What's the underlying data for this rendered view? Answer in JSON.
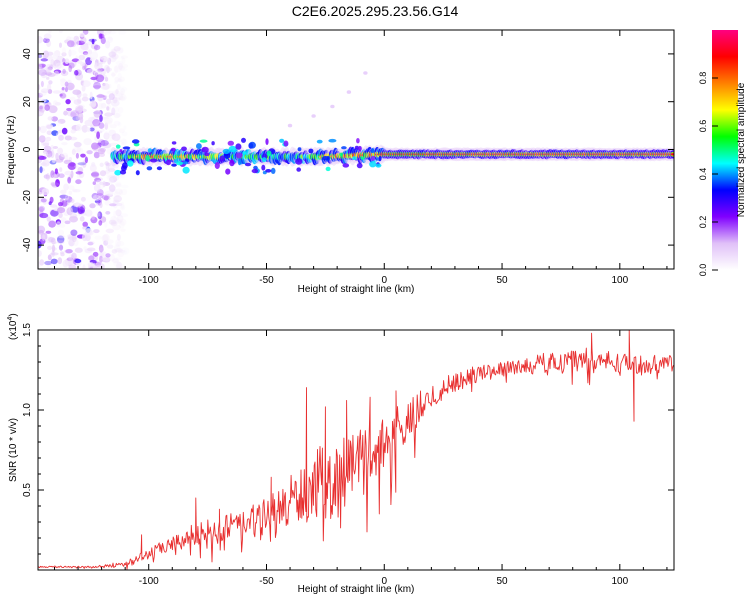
{
  "title": "C2E6.2025.295.23.56.G14",
  "chart_data": [
    {
      "type": "heatmap",
      "xlabel": "Height of straight line (km)",
      "ylabel": "Frequency (Hz)",
      "xlim": [
        -147,
        123
      ],
      "ylim": [
        -50,
        50
      ],
      "xticks": [
        -100,
        -50,
        0,
        50,
        100
      ],
      "yticks": [
        -40,
        -20,
        0,
        20,
        40
      ],
      "colorbar": {
        "label": "Normalized spectral amplitude",
        "range": [
          0,
          1
        ],
        "ticks": [
          0.0,
          0.2,
          0.4,
          0.6,
          0.8
        ],
        "colors": [
          "#ffffff",
          "#e0c0f8",
          "#8000ff",
          "#0000ff",
          "#00ffff",
          "#00ff00",
          "#ffff00",
          "#ff8000",
          "#ff0000",
          "#ff0080"
        ]
      },
      "band": {
        "description": "spectral energy concentrated near 0 Hz",
        "center_freq_by_x": [
          [
            -115,
            -3
          ],
          [
            -100,
            -3
          ],
          [
            -75,
            -3
          ],
          [
            -50,
            -3
          ],
          [
            -25,
            -3
          ],
          [
            0,
            -2
          ],
          [
            25,
            -2
          ],
          [
            50,
            -2
          ],
          [
            75,
            -2
          ],
          [
            100,
            -2
          ],
          [
            123,
            -2
          ]
        ],
        "peak_amplitude_by_x": [
          [
            -115,
            0.45
          ],
          [
            -100,
            0.95
          ],
          [
            -80,
            0.8
          ],
          [
            -60,
            0.6
          ],
          [
            -40,
            0.55
          ],
          [
            -20,
            0.9
          ],
          [
            0,
            0.95
          ],
          [
            25,
            0.98
          ],
          [
            50,
            1.0
          ],
          [
            75,
            1.0
          ],
          [
            100,
            1.0
          ],
          [
            123,
            1.0
          ]
        ]
      },
      "noise_region_x": [
        -147,
        -110
      ],
      "streak_points": [
        [
          -40,
          10
        ],
        [
          -30,
          14
        ],
        [
          -22,
          18
        ],
        [
          -15,
          24
        ],
        [
          -8,
          32
        ]
      ]
    },
    {
      "type": "line",
      "xlabel": "Height of straight line (km)",
      "ylabel": "SNR (10 * v/v)",
      "y_multiplier": "(x10",
      "y_multiplier_exp": "4",
      "y_multiplier_close": ")",
      "xlim": [
        -147,
        123
      ],
      "ylim": [
        0,
        1.5
      ],
      "xticks": [
        -100,
        -50,
        0,
        50,
        100
      ],
      "yticks": [
        0.5,
        1.0,
        1.5
      ],
      "color": "#e83030",
      "series": [
        {
          "envelope_mean": [
            [
              -147,
              0.02
            ],
            [
              -120,
              0.02
            ],
            [
              -110,
              0.04
            ],
            [
              -100,
              0.1
            ],
            [
              -90,
              0.16
            ],
            [
              -80,
              0.22
            ],
            [
              -70,
              0.25
            ],
            [
              -60,
              0.28
            ],
            [
              -50,
              0.32
            ],
            [
              -40,
              0.42
            ],
            [
              -30,
              0.52
            ],
            [
              -20,
              0.58
            ],
            [
              -10,
              0.7
            ],
            [
              0,
              0.78
            ],
            [
              10,
              0.92
            ],
            [
              20,
              1.08
            ],
            [
              30,
              1.18
            ],
            [
              40,
              1.23
            ],
            [
              50,
              1.26
            ],
            [
              60,
              1.28
            ],
            [
              70,
              1.3
            ],
            [
              80,
              1.32
            ],
            [
              90,
              1.31
            ],
            [
              100,
              1.29
            ],
            [
              110,
              1.28
            ],
            [
              123,
              1.3
            ]
          ],
          "envelope_jitter": [
            [
              -147,
              0.005
            ],
            [
              -120,
              0.01
            ],
            [
              -100,
              0.04
            ],
            [
              -80,
              0.08
            ],
            [
              -60,
              0.12
            ],
            [
              -40,
              0.2
            ],
            [
              -20,
              0.28
            ],
            [
              0,
              0.22
            ],
            [
              20,
              0.1
            ],
            [
              40,
              0.06
            ],
            [
              60,
              0.06
            ],
            [
              80,
              0.09
            ],
            [
              100,
              0.08
            ],
            [
              123,
              0.05
            ]
          ],
          "spikes": [
            [
              -103,
              0.22
            ],
            [
              -97,
              0.15
            ],
            [
              -80,
              0.45
            ],
            [
              -70,
              0.38
            ],
            [
              -48,
              0.58
            ],
            [
              -33,
              1.14
            ],
            [
              -25,
              1.02
            ],
            [
              -16,
              1.06
            ],
            [
              -6,
              1.08
            ],
            [
              5,
              1.12
            ],
            [
              88,
              1.48
            ],
            [
              104,
              1.5
            ],
            [
              106,
              0.93
            ]
          ]
        }
      ]
    }
  ]
}
